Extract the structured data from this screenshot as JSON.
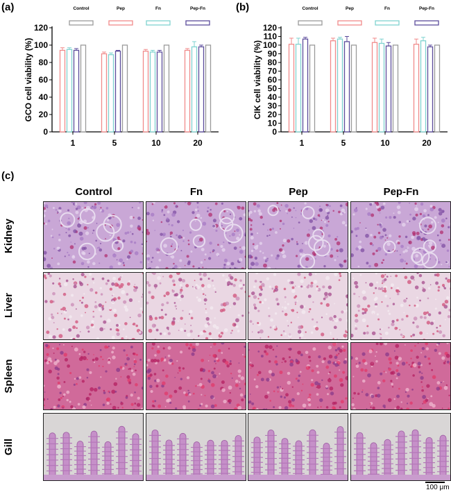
{
  "panels": {
    "a": {
      "label": "(a)"
    },
    "b": {
      "label": "(b)"
    },
    "c": {
      "label": "(c)"
    }
  },
  "colors": {
    "Control": "#9a9a9a",
    "Pep": "#f08a8a",
    "Fn": "#7fd3d0",
    "Pep-Fn": "#5b4b9b"
  },
  "chart_data": [
    {
      "type": "bar",
      "panel": "(a)",
      "ylabel": "GCO cell viability (%)",
      "xlabel": "",
      "categories": [
        "1",
        "5",
        "10",
        "20"
      ],
      "ylim": [
        0,
        120
      ],
      "yticks": [
        0,
        20,
        40,
        60,
        80,
        100,
        120
      ],
      "legend": [
        "Control",
        "Pep",
        "Fn",
        "Pep-Fn"
      ],
      "legend_position": "top",
      "series": [
        {
          "name": "Pep",
          "values": [
            94,
            90,
            93,
            94
          ],
          "errors": [
            3,
            2,
            2,
            2
          ]
        },
        {
          "name": "Fn",
          "values": [
            95,
            89,
            92,
            98
          ],
          "errors": [
            2,
            2,
            2,
            6
          ]
        },
        {
          "name": "Pep-Fn",
          "values": [
            94,
            93,
            92,
            98
          ],
          "errors": [
            2,
            1,
            2,
            2
          ]
        },
        {
          "name": "Control",
          "values": [
            100,
            100,
            100,
            100
          ],
          "errors": [
            0,
            0,
            0,
            0
          ]
        }
      ]
    },
    {
      "type": "bar",
      "panel": "(b)",
      "ylabel": "CIK cell viability (%)",
      "xlabel": "",
      "categories": [
        "1",
        "5",
        "10",
        "20"
      ],
      "ylim": [
        0,
        120
      ],
      "yticks": [
        0,
        10,
        20,
        30,
        40,
        50,
        60,
        70,
        80,
        90,
        100,
        110,
        120
      ],
      "legend": [
        "Control",
        "Pep",
        "Fn",
        "Pep-Fn"
      ],
      "legend_position": "top",
      "series": [
        {
          "name": "Pep",
          "values": [
            101,
            105,
            103,
            101
          ],
          "errors": [
            7,
            3,
            5,
            6
          ]
        },
        {
          "name": "Fn",
          "values": [
            101,
            107,
            102,
            105
          ],
          "errors": [
            7,
            2,
            5,
            4
          ]
        },
        {
          "name": "Pep-Fn",
          "values": [
            107,
            104,
            99,
            98
          ],
          "errors": [
            2,
            6,
            4,
            2
          ]
        },
        {
          "name": "Control",
          "values": [
            100,
            100,
            100,
            100
          ],
          "errors": [
            0,
            0,
            0,
            0
          ]
        }
      ]
    }
  ],
  "histology": {
    "columns": [
      "Control",
      "Fn",
      "Pep",
      "Pep-Fn"
    ],
    "rows": [
      "Kidney",
      "Liver",
      "Spleen",
      "Gill"
    ],
    "scale_bar": "100 μm"
  }
}
